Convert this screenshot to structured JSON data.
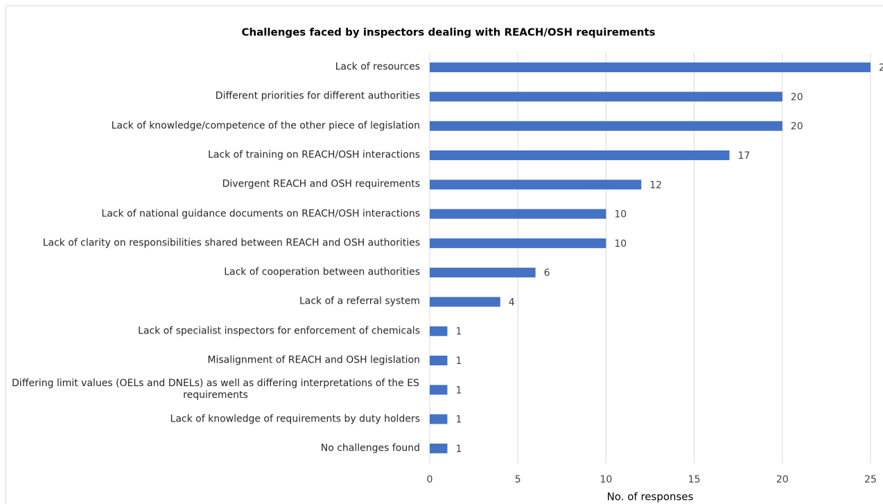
{
  "chart_data": {
    "type": "hbar",
    "title": "Challenges faced by inspectors dealing with REACH/OSH requirements",
    "x_label": "No. of responses",
    "categories": [
      "Lack of resources",
      "Different priorities for different authorities",
      "Lack of knowledge/competence of the other piece of legislation",
      "Lack of training on REACH/OSH interactions",
      "Divergent REACH and OSH requirements",
      "Lack of national guidance documents on REACH/OSH interactions",
      "Lack of clarity on responsibilities shared between REACH and OSH authorities",
      "Lack of cooperation between authorities",
      "Lack of a referral system",
      "Lack of specialist inspectors for enforcement of chemicals",
      "Misalignment of REACH and OSH legislation",
      "Differing limit values (OELs and DNELs) as well as differing interpretations of the ES requirements",
      "Lack of knowledge of requirements by duty holders",
      "No challenges found"
    ],
    "values": [
      25,
      20,
      20,
      17,
      12,
      10,
      10,
      6,
      4,
      1,
      1,
      1,
      1,
      1
    ],
    "color": "#4472c4",
    "xlim": [
      0,
      25
    ],
    "xticks": [
      0,
      5,
      10,
      15,
      20,
      25
    ],
    "grid": true
  }
}
